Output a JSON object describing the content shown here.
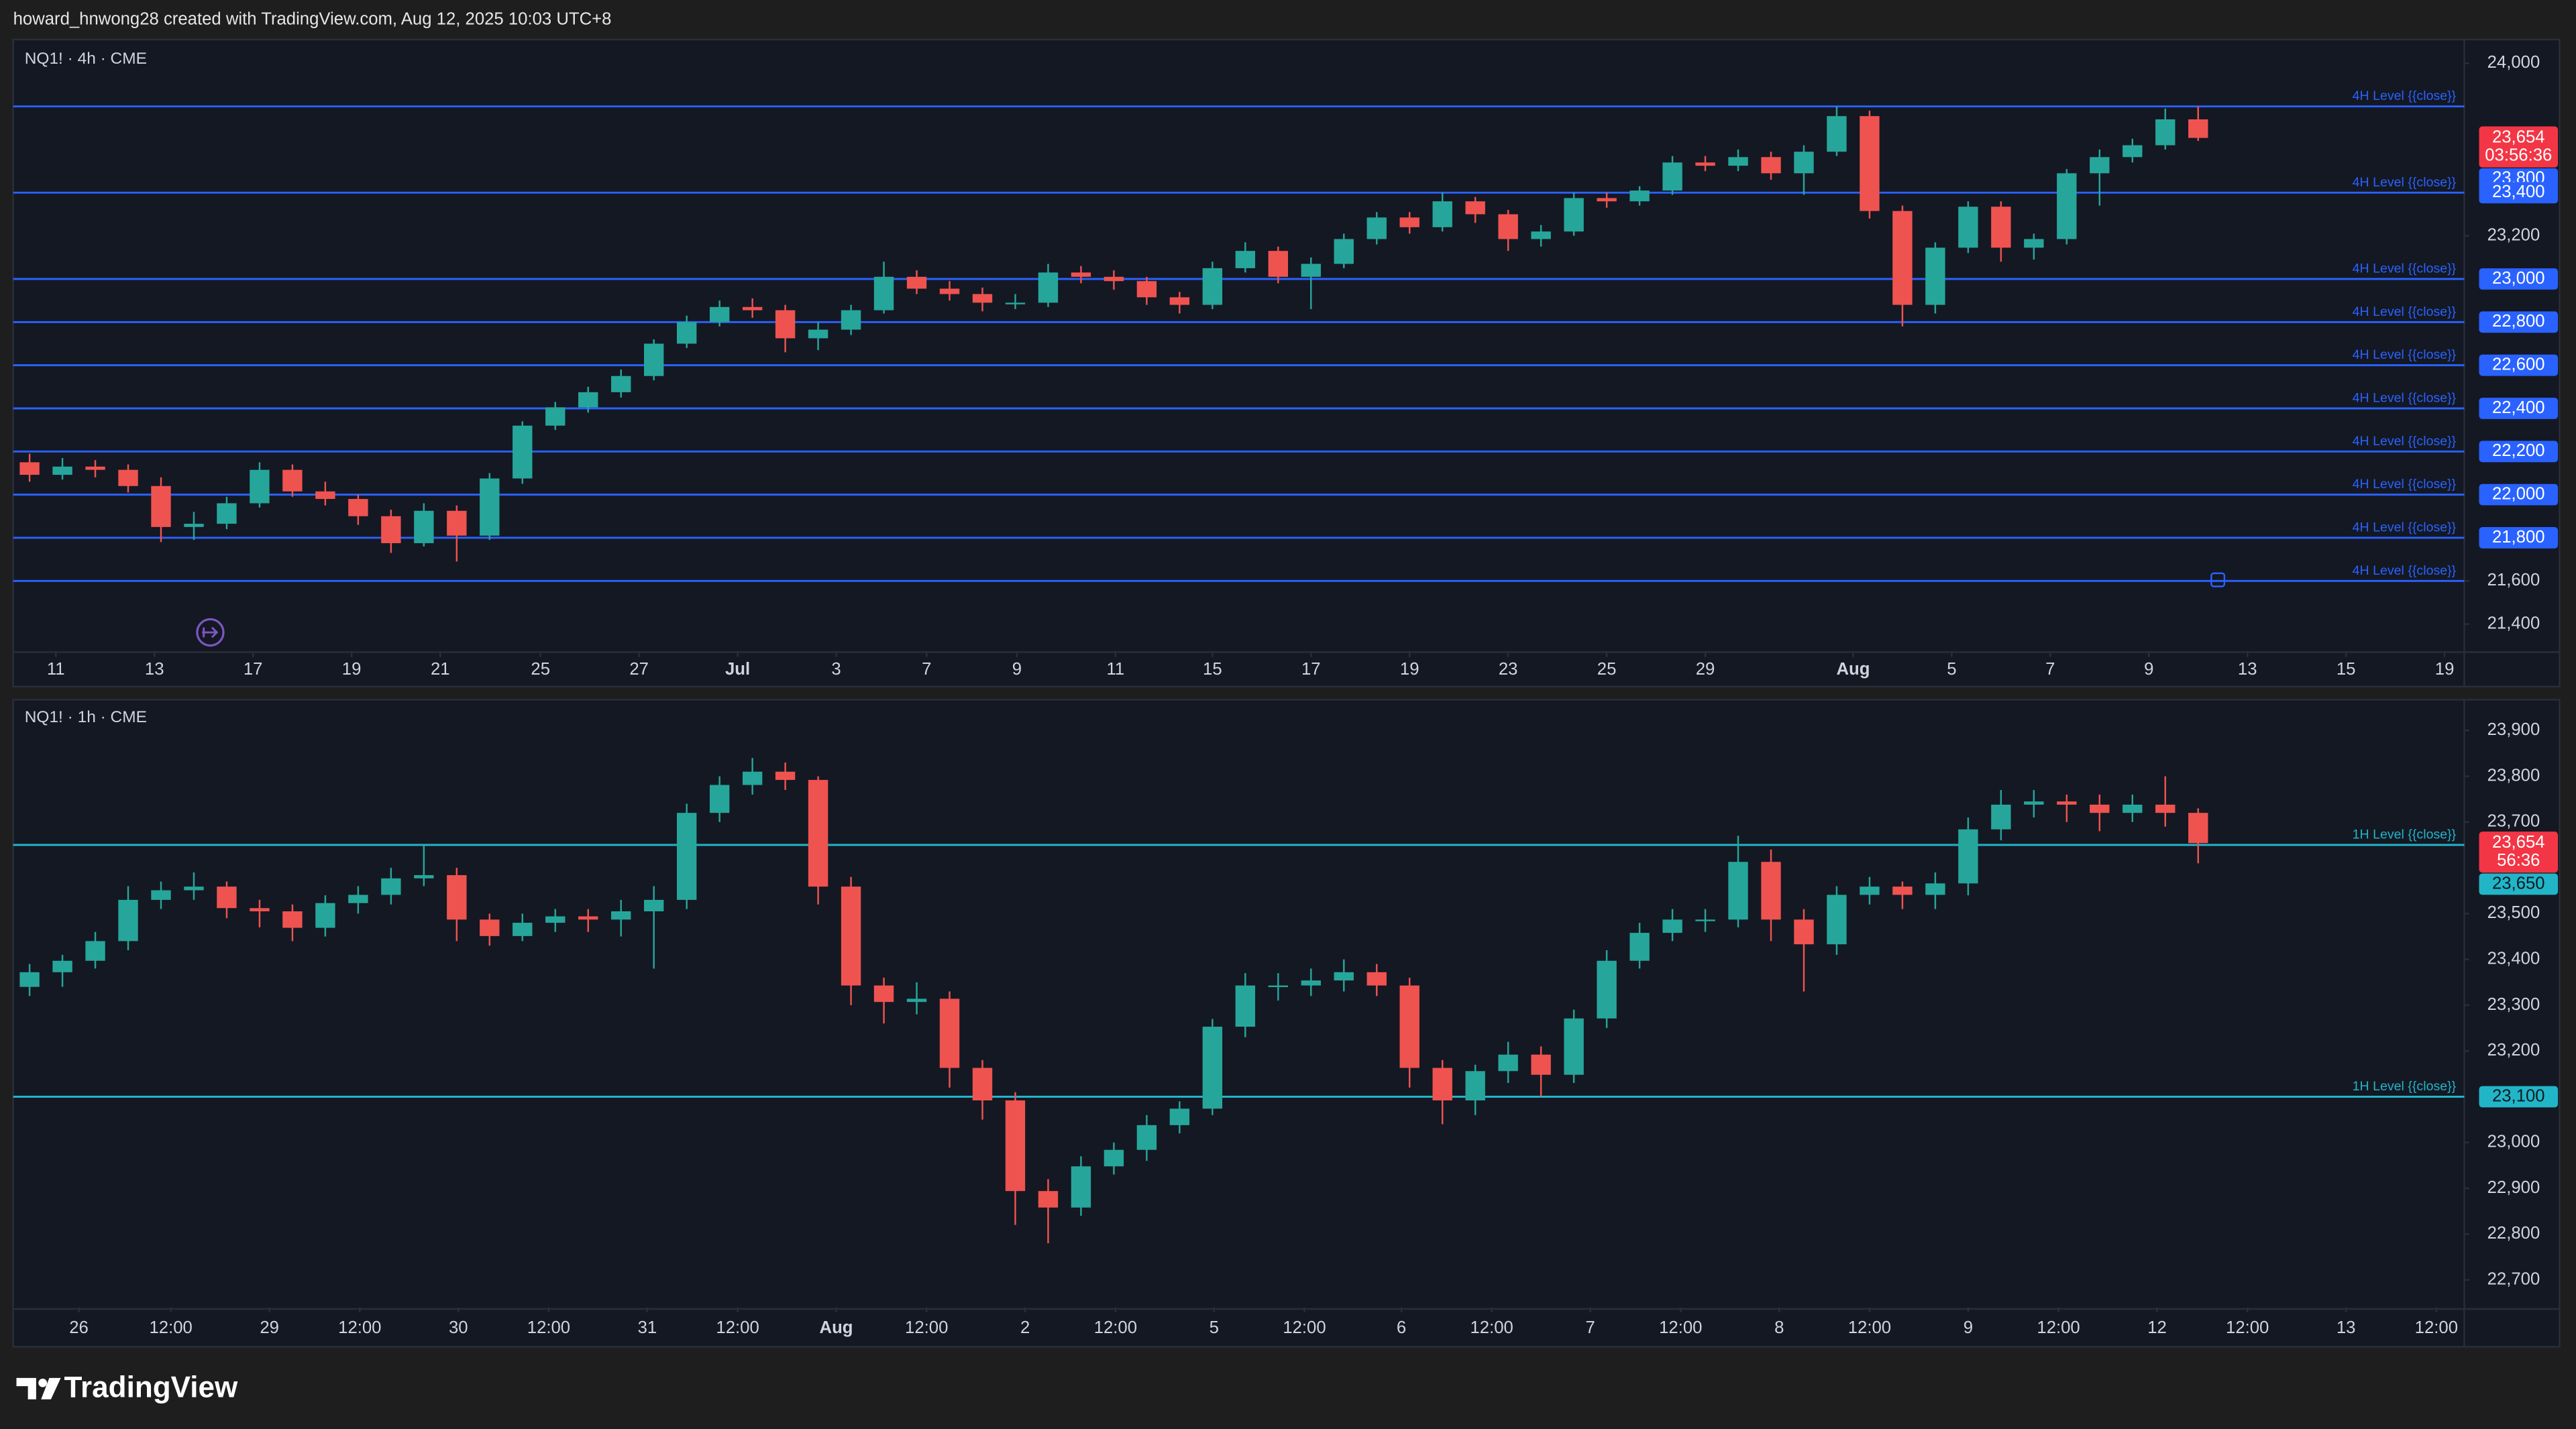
{
  "header": {
    "text": "howard_hnwong28 created with TradingView.com, Aug 12, 2025 10:03 UTC+8"
  },
  "footer": {
    "brand": "TradingView"
  },
  "chart_data": [
    {
      "type": "candlestick",
      "title": "NQ1! · 4h · CME",
      "up_color": "#26a69a",
      "down_color": "#ef5350",
      "level_color": "#2962ff",
      "last_color": "#f23645",
      "xlim": [
        0,
        74.6
      ],
      "ylim": [
        21270,
        24110
      ],
      "xticks": [
        {
          "value": 1.3,
          "label": "11"
        },
        {
          "value": 4.3,
          "label": "13"
        },
        {
          "value": 7.3,
          "label": "17"
        },
        {
          "value": 10.3,
          "label": "19"
        },
        {
          "value": 13,
          "label": "21"
        },
        {
          "value": 16.05,
          "label": "25"
        },
        {
          "value": 19.05,
          "label": "27"
        },
        {
          "value": 22.05,
          "label": "Jul"
        },
        {
          "value": 25.05,
          "label": "3"
        },
        {
          "value": 27.8,
          "label": "7"
        },
        {
          "value": 30.55,
          "label": "9"
        },
        {
          "value": 33.55,
          "label": "11"
        },
        {
          "value": 36.5,
          "label": "15"
        },
        {
          "value": 39.5,
          "label": "17"
        },
        {
          "value": 42.5,
          "label": "19"
        },
        {
          "value": 45.5,
          "label": "23"
        },
        {
          "value": 48.5,
          "label": "25"
        },
        {
          "value": 51.5,
          "label": "29"
        },
        {
          "value": 56,
          "label": "Aug"
        },
        {
          "value": 59,
          "label": "5"
        },
        {
          "value": 62,
          "label": "7"
        },
        {
          "value": 65,
          "label": "9"
        },
        {
          "value": 68,
          "label": "13"
        },
        {
          "value": 71,
          "label": "15"
        },
        {
          "value": 74,
          "label": "19"
        }
      ],
      "yticks": [
        {
          "value": 24000,
          "label": "24,000"
        },
        {
          "value": 23200,
          "label": "23,200"
        },
        {
          "value": 21600,
          "label": "21,600"
        },
        {
          "value": 21400,
          "label": "21,400"
        }
      ],
      "levels": [
        {
          "value": 23800,
          "label": "23,800",
          "text": "4H Level {{close}}"
        },
        {
          "value": 23400,
          "label": "23,400",
          "text": "4H Level {{close}}"
        },
        {
          "value": 23000,
          "label": "23,000",
          "text": "4H Level {{close}}"
        },
        {
          "value": 22800,
          "label": "22,800",
          "text": "4H Level {{close}}"
        },
        {
          "value": 22600,
          "label": "22,600",
          "text": "4H Level {{close}}"
        },
        {
          "value": 22400,
          "label": "22,400",
          "text": "4H Level {{close}}"
        },
        {
          "value": 22200,
          "label": "22,200",
          "text": "4H Level {{close}}"
        },
        {
          "value": 22000,
          "label": "22,000",
          "text": "4H Level {{close}}"
        },
        {
          "value": 21800,
          "label": "21,800",
          "text": "4H Level {{close}}"
        },
        {
          "value": 21600,
          "text": "4H Level {{close}}"
        }
      ],
      "last_price": {
        "value": 23654,
        "label": "23,654",
        "countdown": "03:56:36"
      },
      "candles": [
        [
          22150,
          22190,
          22060,
          22092
        ],
        [
          22092,
          22170,
          22070,
          22130
        ],
        [
          22130,
          22160,
          22080,
          22115
        ],
        [
          22115,
          22140,
          22010,
          22040
        ],
        [
          22040,
          22080,
          21780,
          21850
        ],
        [
          21850,
          21920,
          21790,
          21865
        ],
        [
          21865,
          21990,
          21840,
          21960
        ],
        [
          21960,
          22150,
          21940,
          22115
        ],
        [
          22115,
          22140,
          21990,
          22015
        ],
        [
          22015,
          22060,
          21950,
          21980
        ],
        [
          21980,
          22000,
          21860,
          21900
        ],
        [
          21900,
          21930,
          21730,
          21775
        ],
        [
          21775,
          21960,
          21760,
          21925
        ],
        [
          21925,
          21950,
          21690,
          21810
        ],
        [
          21810,
          22100,
          21790,
          22075
        ],
        [
          22075,
          22340,
          22050,
          22320
        ],
        [
          22320,
          22430,
          22300,
          22405
        ],
        [
          22405,
          22500,
          22380,
          22475
        ],
        [
          22475,
          22580,
          22450,
          22550
        ],
        [
          22550,
          22720,
          22530,
          22700
        ],
        [
          22700,
          22830,
          22680,
          22800
        ],
        [
          22800,
          22900,
          22780,
          22870
        ],
        [
          22870,
          22910,
          22820,
          22855
        ],
        [
          22855,
          22880,
          22660,
          22725
        ],
        [
          22725,
          22800,
          22670,
          22765
        ],
        [
          22765,
          22880,
          22740,
          22855
        ],
        [
          22855,
          23080,
          22840,
          23010
        ],
        [
          23010,
          23040,
          22930,
          22955
        ],
        [
          22955,
          22990,
          22900,
          22930
        ],
        [
          22930,
          22960,
          22850,
          22890
        ],
        [
          22890,
          22930,
          22860,
          22890
        ],
        [
          22890,
          23070,
          22870,
          23030
        ],
        [
          23030,
          23060,
          22980,
          23010
        ],
        [
          23010,
          23040,
          22950,
          22990
        ],
        [
          22990,
          23010,
          22880,
          22915
        ],
        [
          22915,
          22940,
          22840,
          22880
        ],
        [
          22880,
          23080,
          22860,
          23050
        ],
        [
          23050,
          23170,
          23030,
          23130
        ],
        [
          23130,
          23150,
          22980,
          23010
        ],
        [
          23010,
          23100,
          22860,
          23070
        ],
        [
          23070,
          23210,
          23050,
          23185
        ],
        [
          23185,
          23310,
          23160,
          23285
        ],
        [
          23285,
          23310,
          23210,
          23240
        ],
        [
          23240,
          23400,
          23220,
          23360
        ],
        [
          23360,
          23380,
          23260,
          23300
        ],
        [
          23300,
          23320,
          23130,
          23185
        ],
        [
          23185,
          23250,
          23150,
          23220
        ],
        [
          23220,
          23400,
          23200,
          23375
        ],
        [
          23375,
          23400,
          23330,
          23360
        ],
        [
          23360,
          23430,
          23340,
          23410
        ],
        [
          23410,
          23570,
          23390,
          23540
        ],
        [
          23540,
          23570,
          23500,
          23525
        ],
        [
          23525,
          23600,
          23500,
          23565
        ],
        [
          23565,
          23590,
          23460,
          23490
        ],
        [
          23490,
          23620,
          23390,
          23590
        ],
        [
          23590,
          23800,
          23570,
          23755
        ],
        [
          23755,
          23780,
          23280,
          23315
        ],
        [
          23315,
          23340,
          22780,
          22880
        ],
        [
          22880,
          23170,
          22840,
          23145
        ],
        [
          23145,
          23360,
          23120,
          23335
        ],
        [
          23335,
          23360,
          23080,
          23145
        ],
        [
          23145,
          23210,
          23090,
          23185
        ],
        [
          23185,
          23510,
          23160,
          23490
        ],
        [
          23490,
          23600,
          23340,
          23565
        ],
        [
          23565,
          23650,
          23540,
          23620
        ],
        [
          23620,
          23790,
          23600,
          23740
        ],
        [
          23740,
          23800,
          23640,
          23654
        ]
      ]
    },
    {
      "type": "candlestick",
      "title": "NQ1! · 1h · CME",
      "up_color": "#26a69a",
      "down_color": "#ef5350",
      "level_color": "#22b5c8",
      "last_color": "#f23645",
      "xlim": [
        0,
        74.6
      ],
      "ylim": [
        22640,
        23960
      ],
      "xticks": [
        {
          "value": 2,
          "label": "26"
        },
        {
          "value": 4.8,
          "label": "12:00"
        },
        {
          "value": 7.8,
          "label": "29"
        },
        {
          "value": 10.55,
          "label": "12:00"
        },
        {
          "value": 13.55,
          "label": "30"
        },
        {
          "value": 16.3,
          "label": "12:00"
        },
        {
          "value": 19.3,
          "label": "31"
        },
        {
          "value": 22.05,
          "label": "12:00"
        },
        {
          "value": 25.05,
          "label": "Aug"
        },
        {
          "value": 27.8,
          "label": "12:00"
        },
        {
          "value": 30.8,
          "label": "2"
        },
        {
          "value": 33.55,
          "label": "12:00"
        },
        {
          "value": 36.55,
          "label": "5"
        },
        {
          "value": 39.3,
          "label": "12:00"
        },
        {
          "value": 42.25,
          "label": "6"
        },
        {
          "value": 45,
          "label": "12:00"
        },
        {
          "value": 48,
          "label": "7"
        },
        {
          "value": 50.75,
          "label": "12:00"
        },
        {
          "value": 53.75,
          "label": "8"
        },
        {
          "value": 56.5,
          "label": "12:00"
        },
        {
          "value": 59.5,
          "label": "9"
        },
        {
          "value": 62.25,
          "label": "12:00"
        },
        {
          "value": 65.25,
          "label": "12"
        },
        {
          "value": 68,
          "label": "12:00"
        },
        {
          "value": 71,
          "label": "13"
        },
        {
          "value": 73.75,
          "label": "12:00"
        }
      ],
      "yticks": [
        {
          "value": 23900,
          "label": "23,900"
        },
        {
          "value": 23800,
          "label": "23,800"
        },
        {
          "value": 23700,
          "label": "23,700"
        },
        {
          "value": 23500,
          "label": "23,500"
        },
        {
          "value": 23400,
          "label": "23,400"
        },
        {
          "value": 23300,
          "label": "23,300"
        },
        {
          "value": 23200,
          "label": "23,200"
        },
        {
          "value": 23000,
          "label": "23,000"
        },
        {
          "value": 22900,
          "label": "22,900"
        },
        {
          "value": 22800,
          "label": "22,800"
        },
        {
          "value": 22700,
          "label": "22,700"
        }
      ],
      "levels": [
        {
          "value": 23650,
          "label": "23,650",
          "text": "1H Level {{close}}"
        },
        {
          "value": 23100,
          "label": "23,100",
          "text": "1H Level {{close}}"
        }
      ],
      "last_price": {
        "value": 23654,
        "label": "23,654",
        "countdown": "56:36"
      },
      "candles": [
        [
          23340,
          23390,
          23320,
          23372
        ],
        [
          23372,
          23410,
          23340,
          23397
        ],
        [
          23397,
          23460,
          23380,
          23440
        ],
        [
          23440,
          23560,
          23420,
          23530
        ],
        [
          23530,
          23570,
          23510,
          23551
        ],
        [
          23551,
          23590,
          23530,
          23559
        ],
        [
          23559,
          23570,
          23490,
          23512
        ],
        [
          23512,
          23530,
          23470,
          23505
        ],
        [
          23505,
          23520,
          23440,
          23469
        ],
        [
          23469,
          23540,
          23450,
          23523
        ],
        [
          23523,
          23560,
          23500,
          23541
        ],
        [
          23541,
          23600,
          23520,
          23577
        ],
        [
          23577,
          23650,
          23560,
          23584
        ],
        [
          23584,
          23600,
          23440,
          23487
        ],
        [
          23487,
          23500,
          23430,
          23451
        ],
        [
          23451,
          23500,
          23440,
          23480
        ],
        [
          23480,
          23510,
          23460,
          23494
        ],
        [
          23494,
          23510,
          23460,
          23487
        ],
        [
          23487,
          23530,
          23450,
          23505
        ],
        [
          23505,
          23560,
          23380,
          23530
        ],
        [
          23530,
          23740,
          23510,
          23720
        ],
        [
          23720,
          23800,
          23700,
          23781
        ],
        [
          23781,
          23840,
          23760,
          23810
        ],
        [
          23810,
          23830,
          23770,
          23792
        ],
        [
          23792,
          23800,
          23520,
          23559
        ],
        [
          23559,
          23580,
          23300,
          23343
        ],
        [
          23343,
          23360,
          23260,
          23307
        ],
        [
          23307,
          23350,
          23280,
          23314
        ],
        [
          23314,
          23330,
          23120,
          23163
        ],
        [
          23163,
          23180,
          23050,
          23092
        ],
        [
          23092,
          23110,
          22820,
          22894
        ],
        [
          22894,
          22920,
          22780,
          22858
        ],
        [
          22858,
          22970,
          22840,
          22948
        ],
        [
          22948,
          23000,
          22930,
          22984
        ],
        [
          22984,
          23060,
          22960,
          23038
        ],
        [
          23038,
          23090,
          23020,
          23074
        ],
        [
          23074,
          23270,
          23060,
          23253
        ],
        [
          23253,
          23370,
          23230,
          23343
        ],
        [
          23343,
          23370,
          23310,
          23343
        ],
        [
          23343,
          23380,
          23320,
          23354
        ],
        [
          23354,
          23400,
          23330,
          23372
        ],
        [
          23372,
          23390,
          23320,
          23343
        ],
        [
          23343,
          23360,
          23120,
          23163
        ],
        [
          23163,
          23180,
          23040,
          23092
        ],
        [
          23092,
          23170,
          23060,
          23156
        ],
        [
          23156,
          23220,
          23130,
          23192
        ],
        [
          23192,
          23210,
          23100,
          23148
        ],
        [
          23148,
          23290,
          23130,
          23271
        ],
        [
          23271,
          23420,
          23250,
          23397
        ],
        [
          23397,
          23480,
          23380,
          23458
        ],
        [
          23458,
          23510,
          23440,
          23487
        ],
        [
          23487,
          23510,
          23460,
          23487
        ],
        [
          23487,
          23670,
          23470,
          23613
        ],
        [
          23613,
          23640,
          23440,
          23487
        ],
        [
          23487,
          23510,
          23330,
          23433
        ],
        [
          23433,
          23560,
          23410,
          23541
        ],
        [
          23541,
          23580,
          23520,
          23559
        ],
        [
          23559,
          23570,
          23510,
          23541
        ],
        [
          23541,
          23590,
          23510,
          23566
        ],
        [
          23566,
          23710,
          23540,
          23684
        ],
        [
          23684,
          23770,
          23660,
          23738
        ],
        [
          23738,
          23770,
          23710,
          23745
        ],
        [
          23745,
          23760,
          23700,
          23738
        ],
        [
          23738,
          23760,
          23680,
          23720
        ],
        [
          23720,
          23760,
          23700,
          23738
        ],
        [
          23738,
          23800,
          23690,
          23720
        ],
        [
          23720,
          23730,
          23610,
          23654
        ]
      ]
    }
  ]
}
